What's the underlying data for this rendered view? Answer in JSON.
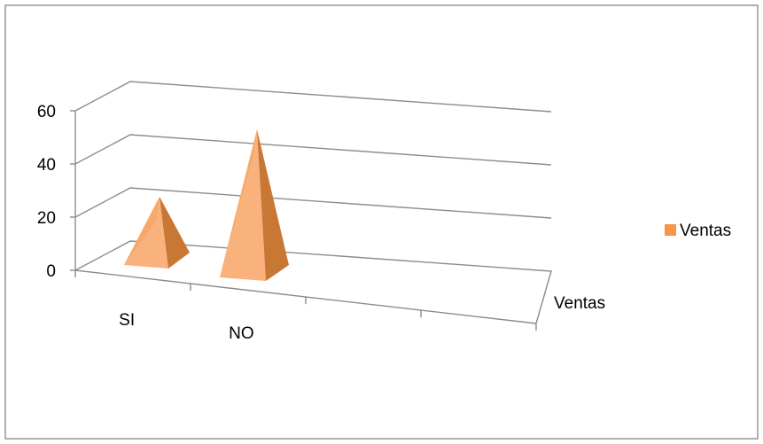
{
  "chart_data": {
    "type": "bar",
    "shape": "pyramid-3d",
    "categories": [
      "SI",
      "NO",
      "",
      ""
    ],
    "series": [
      {
        "name": "Ventas",
        "values": [
          19,
          49,
          null,
          null
        ]
      }
    ],
    "depth_axis_label": "Ventas",
    "yticks": [
      "0",
      "20",
      "40",
      "60"
    ],
    "ylim": [
      0,
      60
    ],
    "grid": true,
    "legend": {
      "position": "right",
      "entries": [
        "Ventas"
      ]
    },
    "colors": {
      "series": "#f79646",
      "light": "#f9b27b",
      "dark": "#c97735",
      "grid": "#8c8c8c",
      "border": "#868686"
    }
  }
}
